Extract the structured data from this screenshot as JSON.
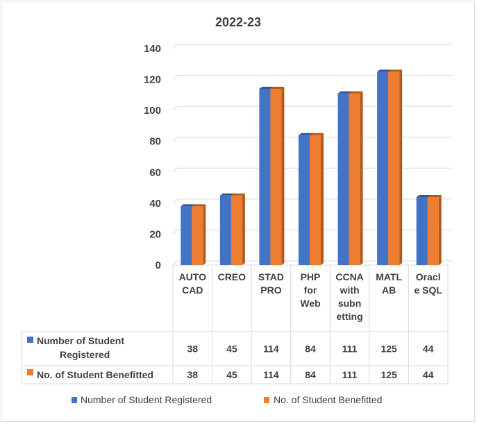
{
  "chart_data": {
    "type": "bar",
    "title": "2022-23",
    "categories": [
      [
        "AUTO",
        "CAD"
      ],
      [
        "CREO"
      ],
      [
        "STAD",
        "PRO"
      ],
      [
        "PHP",
        "for",
        "Web"
      ],
      [
        "CCNA",
        "with",
        "subn",
        "etting"
      ],
      [
        "MATL",
        "AB"
      ],
      [
        "Oracl",
        "e SQL"
      ]
    ],
    "series": [
      {
        "name": "Number of Student Registered",
        "row_label": [
          "Number of Student",
          "Registered"
        ],
        "color": "#4472c4",
        "dark": "#2f5597",
        "values": [
          38,
          45,
          114,
          84,
          111,
          125,
          44
        ]
      },
      {
        "name": "No. of Student Benefitted",
        "row_label": [
          "No. of Student Benefitted"
        ],
        "color": "#ed7d31",
        "dark": "#b05a1e",
        "values": [
          38,
          45,
          114,
          84,
          111,
          125,
          44
        ]
      }
    ],
    "yticks": [
      0,
      20,
      40,
      60,
      80,
      100,
      120,
      140
    ],
    "ylim": [
      0,
      140
    ],
    "grid": true,
    "data_table": true,
    "legend_position": "bottom"
  }
}
